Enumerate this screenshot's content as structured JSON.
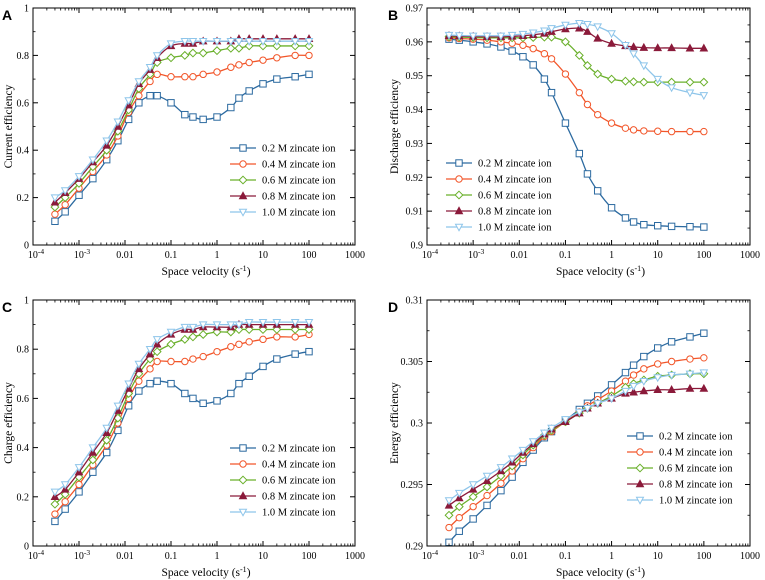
{
  "series_colors": [
    "#2c6aa0",
    "#f2562a",
    "#6ab02b",
    "#8b1a3a",
    "#8ec5ea"
  ],
  "marker_shapes": [
    "square",
    "circle",
    "diamond",
    "triangle-up",
    "triangle-down"
  ],
  "legend_entries": [
    "0.2 M zincate ion",
    "0.4 M zincate ion",
    "0.6 M zincate ion",
    "0.8 M zincate ion",
    "1.0 M zincate ion"
  ],
  "chart_data": [
    {
      "panel": "A",
      "type": "line",
      "xscale": "log",
      "xlabel": "Space velocity (s",
      "xlabel_sup": "-1",
      "xlabel_tail": ")",
      "ylabel": "Current efficiency",
      "xlim": [
        0.0001,
        1000
      ],
      "ylim": [
        0,
        1
      ],
      "xticks": [
        "10",
        "10",
        "0.01",
        "0.1",
        "1",
        "10",
        "100",
        "1000"
      ],
      "xtick_sups": [
        "-4",
        "-3",
        "",
        "",
        "",
        "",
        "",
        ""
      ],
      "yticks": [
        "0",
        "0.2",
        "0.4",
        "0.6",
        "0.8",
        "1"
      ],
      "legend_location": "lower-right",
      "x": [
        0.0003,
        0.0005,
        0.001,
        0.002,
        0.004,
        0.007,
        0.012,
        0.02,
        0.035,
        0.05,
        0.1,
        0.2,
        0.3,
        0.5,
        1,
        2,
        3,
        5,
        10,
        20,
        50,
        100
      ],
      "series": [
        {
          "name": "0.2 M zincate ion",
          "values": [
            0.1,
            0.14,
            0.21,
            0.28,
            0.36,
            0.44,
            0.53,
            0.6,
            0.63,
            0.63,
            0.6,
            0.55,
            0.54,
            0.53,
            0.54,
            0.58,
            0.62,
            0.65,
            0.68,
            0.7,
            0.71,
            0.72
          ]
        },
        {
          "name": "0.4 M zincate ion",
          "values": [
            0.13,
            0.17,
            0.24,
            0.31,
            0.38,
            0.46,
            0.56,
            0.63,
            0.69,
            0.72,
            0.71,
            0.71,
            0.71,
            0.72,
            0.73,
            0.75,
            0.76,
            0.77,
            0.78,
            0.79,
            0.8,
            0.8
          ]
        },
        {
          "name": "0.6 M zincate ion",
          "values": [
            0.16,
            0.2,
            0.26,
            0.33,
            0.4,
            0.48,
            0.57,
            0.66,
            0.72,
            0.77,
            0.79,
            0.8,
            0.81,
            0.81,
            0.82,
            0.83,
            0.83,
            0.84,
            0.84,
            0.84,
            0.84,
            0.84
          ]
        },
        {
          "name": "0.8 M zincate ion",
          "values": [
            0.18,
            0.22,
            0.28,
            0.35,
            0.42,
            0.5,
            0.59,
            0.68,
            0.74,
            0.79,
            0.84,
            0.85,
            0.85,
            0.86,
            0.86,
            0.86,
            0.87,
            0.87,
            0.87,
            0.87,
            0.87,
            0.87
          ]
        },
        {
          "name": "1.0 M zincate ion",
          "values": [
            0.2,
            0.23,
            0.29,
            0.36,
            0.44,
            0.52,
            0.61,
            0.69,
            0.75,
            0.8,
            0.85,
            0.86,
            0.86,
            0.86,
            0.86,
            0.86,
            0.86,
            0.86,
            0.86,
            0.86,
            0.86,
            0.86
          ]
        }
      ]
    },
    {
      "panel": "B",
      "type": "line",
      "xscale": "log",
      "xlabel": "Space velocity (s",
      "xlabel_sup": "-1",
      "xlabel_tail": ")",
      "ylabel": "Discharge efficiency",
      "xlim": [
        0.0001,
        1000
      ],
      "ylim": [
        0.9,
        0.97
      ],
      "xticks": [
        "10",
        "10",
        "0.01",
        "0.1",
        "1",
        "10",
        "100",
        "1000"
      ],
      "xtick_sups": [
        "-4",
        "-3",
        "",
        "",
        "",
        "",
        "",
        ""
      ],
      "yticks": [
        "0.9",
        "0.91",
        "0.92",
        "0.93",
        "0.94",
        "0.95",
        "0.96",
        "0.97"
      ],
      "legend_location": "lower-left",
      "x": [
        0.0003,
        0.0005,
        0.001,
        0.002,
        0.004,
        0.007,
        0.012,
        0.02,
        0.035,
        0.05,
        0.1,
        0.2,
        0.3,
        0.5,
        1,
        2,
        3,
        5,
        10,
        20,
        50,
        100
      ],
      "series": [
        {
          "name": "0.2 M zincate ion",
          "values": [
            0.9608,
            0.9605,
            0.96,
            0.9594,
            0.9585,
            0.9573,
            0.9556,
            0.9532,
            0.949,
            0.945,
            0.936,
            0.927,
            0.921,
            0.916,
            0.911,
            0.908,
            0.9068,
            0.906,
            0.9057,
            0.9055,
            0.9054,
            0.9053
          ]
        },
        {
          "name": "0.4 M zincate ion",
          "values": [
            0.9612,
            0.961,
            0.9608,
            0.9605,
            0.96,
            0.9596,
            0.959,
            0.958,
            0.9565,
            0.955,
            0.9505,
            0.945,
            0.9415,
            0.9385,
            0.936,
            0.9345,
            0.934,
            0.9337,
            0.9336,
            0.9335,
            0.9335,
            0.9335
          ]
        },
        {
          "name": "0.6 M zincate ion",
          "values": [
            0.9615,
            0.9614,
            0.9613,
            0.9612,
            0.9612,
            0.9612,
            0.9612,
            0.9613,
            0.9614,
            0.9614,
            0.96,
            0.956,
            0.953,
            0.9505,
            0.949,
            0.9484,
            0.9482,
            0.9481,
            0.9481,
            0.9481,
            0.9481,
            0.9481
          ]
        },
        {
          "name": "0.8 M zincate ion",
          "values": [
            0.9618,
            0.9617,
            0.9616,
            0.9615,
            0.9615,
            0.9616,
            0.9618,
            0.9621,
            0.9625,
            0.963,
            0.9638,
            0.964,
            0.963,
            0.961,
            0.9595,
            0.9588,
            0.9585,
            0.9583,
            0.9582,
            0.9582,
            0.9581,
            0.9581
          ]
        },
        {
          "name": "1.0 M zincate ion",
          "values": [
            0.962,
            0.9619,
            0.9618,
            0.9618,
            0.9618,
            0.962,
            0.9623,
            0.9627,
            0.9633,
            0.964,
            0.965,
            0.9655,
            0.9652,
            0.9645,
            0.9625,
            0.959,
            0.9565,
            0.953,
            0.949,
            0.9465,
            0.945,
            0.9442
          ]
        }
      ]
    },
    {
      "panel": "C",
      "type": "line",
      "xscale": "log",
      "xlabel": "Space velocity (s",
      "xlabel_sup": "-1",
      "xlabel_tail": ")",
      "ylabel": "Charge efficiency",
      "xlim": [
        0.0001,
        1000
      ],
      "ylim": [
        0,
        1
      ],
      "xticks": [
        "10",
        "10",
        "0.01",
        "0.1",
        "1",
        "10",
        "100",
        "1000"
      ],
      "xtick_sups": [
        "-4",
        "-3",
        "",
        "",
        "",
        "",
        "",
        ""
      ],
      "yticks": [
        "0",
        "0.2",
        "0.4",
        "0.6",
        "0.8",
        "1"
      ],
      "legend_location": "lower-right",
      "x": [
        0.0003,
        0.0005,
        0.001,
        0.002,
        0.004,
        0.007,
        0.012,
        0.02,
        0.035,
        0.05,
        0.1,
        0.2,
        0.3,
        0.5,
        1,
        2,
        3,
        5,
        10,
        20,
        50,
        100
      ],
      "series": [
        {
          "name": "0.2 M zincate ion",
          "values": [
            0.1,
            0.15,
            0.22,
            0.3,
            0.38,
            0.47,
            0.57,
            0.63,
            0.66,
            0.67,
            0.66,
            0.62,
            0.6,
            0.58,
            0.59,
            0.62,
            0.66,
            0.69,
            0.73,
            0.76,
            0.78,
            0.79
          ]
        },
        {
          "name": "0.4 M zincate ion",
          "values": [
            0.13,
            0.18,
            0.25,
            0.33,
            0.41,
            0.5,
            0.6,
            0.67,
            0.72,
            0.75,
            0.75,
            0.75,
            0.76,
            0.77,
            0.79,
            0.81,
            0.82,
            0.83,
            0.84,
            0.85,
            0.85,
            0.86
          ]
        },
        {
          "name": "0.6 M zincate ion",
          "values": [
            0.17,
            0.21,
            0.28,
            0.35,
            0.43,
            0.52,
            0.62,
            0.7,
            0.76,
            0.79,
            0.82,
            0.84,
            0.85,
            0.86,
            0.87,
            0.87,
            0.88,
            0.88,
            0.88,
            0.88,
            0.88,
            0.88
          ]
        },
        {
          "name": "0.8 M zincate ion",
          "values": [
            0.2,
            0.23,
            0.3,
            0.38,
            0.46,
            0.55,
            0.64,
            0.72,
            0.78,
            0.82,
            0.86,
            0.88,
            0.88,
            0.89,
            0.89,
            0.89,
            0.9,
            0.9,
            0.9,
            0.9,
            0.9,
            0.9
          ]
        },
        {
          "name": "1.0 M zincate ion",
          "values": [
            0.22,
            0.25,
            0.32,
            0.4,
            0.48,
            0.57,
            0.66,
            0.74,
            0.8,
            0.84,
            0.87,
            0.89,
            0.89,
            0.9,
            0.9,
            0.9,
            0.9,
            0.91,
            0.91,
            0.91,
            0.91,
            0.91
          ]
        }
      ]
    },
    {
      "panel": "D",
      "type": "line",
      "xscale": "log",
      "xlabel": "Space velocity (s",
      "xlabel_sup": "-1",
      "xlabel_tail": ")",
      "ylabel": "Energy efficiency",
      "xlim": [
        0.0001,
        1000
      ],
      "ylim": [
        0.29,
        0.31
      ],
      "xticks": [
        "10",
        "10",
        "0.01",
        "0.1",
        "1",
        "10",
        "100",
        "1000"
      ],
      "xtick_sups": [
        "-4",
        "-3",
        "",
        "",
        "",
        "",
        "",
        ""
      ],
      "yticks": [
        "0.29",
        "0.295",
        "0.3",
        "0.305",
        "0.31"
      ],
      "legend_location": "lower-right",
      "x": [
        0.0003,
        0.0005,
        0.001,
        0.002,
        0.004,
        0.007,
        0.012,
        0.02,
        0.035,
        0.05,
        0.1,
        0.2,
        0.3,
        0.5,
        1,
        2,
        3,
        5,
        10,
        20,
        50,
        100
      ],
      "series": [
        {
          "name": "0.2 M zincate ion",
          "values": [
            0.2903,
            0.2912,
            0.2922,
            0.2933,
            0.2945,
            0.2956,
            0.2968,
            0.2978,
            0.2988,
            0.2993,
            0.3002,
            0.3011,
            0.3016,
            0.3022,
            0.3031,
            0.3041,
            0.3047,
            0.3054,
            0.3061,
            0.3066,
            0.307,
            0.3073
          ]
        },
        {
          "name": "0.4 M zincate ion",
          "values": [
            0.2915,
            0.2923,
            0.2932,
            0.2941,
            0.2951,
            0.2961,
            0.2971,
            0.298,
            0.2989,
            0.2993,
            0.3001,
            0.3009,
            0.3014,
            0.3019,
            0.3026,
            0.3034,
            0.3039,
            0.3044,
            0.3048,
            0.305,
            0.3052,
            0.3053
          ]
        },
        {
          "name": "0.6 M zincate ion",
          "values": [
            0.2925,
            0.2932,
            0.294,
            0.2948,
            0.2957,
            0.2965,
            0.2974,
            0.2982,
            0.299,
            0.2994,
            0.3001,
            0.3008,
            0.3012,
            0.3016,
            0.3022,
            0.3029,
            0.3032,
            0.3035,
            0.3038,
            0.3039,
            0.304,
            0.304
          ]
        },
        {
          "name": "0.8 M zincate ion",
          "values": [
            0.2933,
            0.2939,
            0.2946,
            0.2953,
            0.2961,
            0.2968,
            0.2976,
            0.2983,
            0.2991,
            0.2995,
            0.3001,
            0.3008,
            0.3012,
            0.3016,
            0.302,
            0.3024,
            0.3025,
            0.3026,
            0.3027,
            0.3027,
            0.3028,
            0.3028
          ]
        },
        {
          "name": "1.0 M zincate ion",
          "values": [
            0.2937,
            0.2943,
            0.295,
            0.2957,
            0.2964,
            0.2971,
            0.2978,
            0.2985,
            0.2992,
            0.2996,
            0.3003,
            0.3009,
            0.3012,
            0.3016,
            0.302,
            0.3026,
            0.303,
            0.3034,
            0.3037,
            0.3039,
            0.304,
            0.3041
          ]
        }
      ]
    }
  ]
}
